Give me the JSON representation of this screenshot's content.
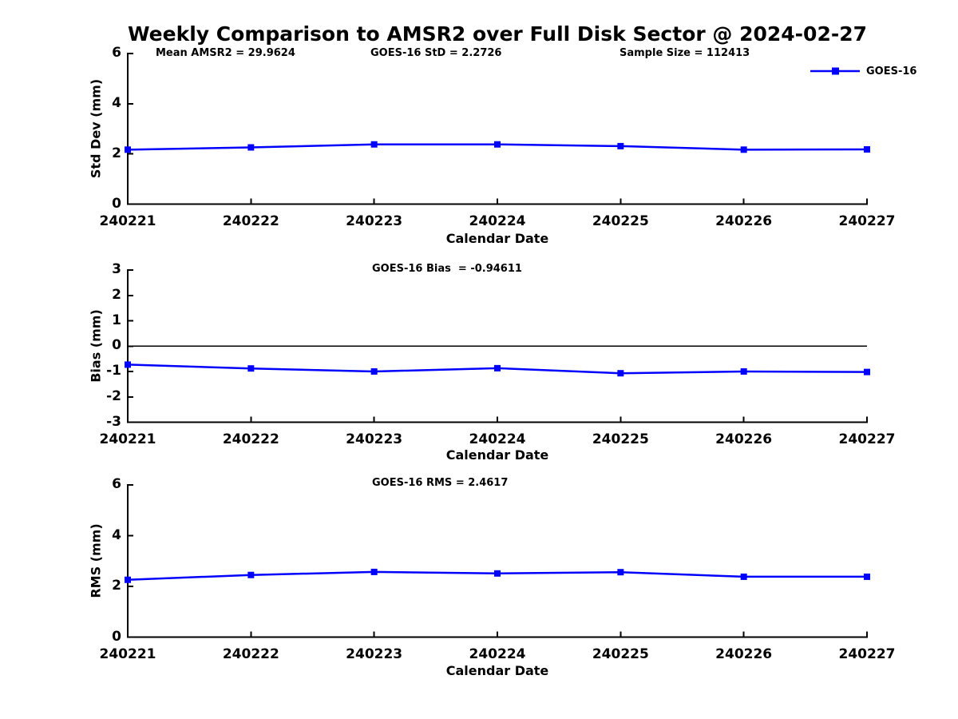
{
  "figure": {
    "title": "Weekly Comparison to AMSR2 over Full Disk Sector @ 2024-02-27",
    "legend_label": "GOES-16",
    "series_color": "#0000FF",
    "axis_color": "#000000"
  },
  "chart_data": [
    {
      "type": "line",
      "categories": [
        "240221",
        "240222",
        "240223",
        "240224",
        "240225",
        "240226",
        "240227"
      ],
      "series": [
        {
          "name": "GOES-16",
          "values": [
            2.17,
            2.26,
            2.38,
            2.38,
            2.31,
            2.17,
            2.18
          ]
        }
      ],
      "xlabel": "Calendar Date",
      "ylabel": "Std Dev (mm)",
      "ylim": [
        0,
        6
      ],
      "yticks": [
        0,
        2,
        4,
        6
      ],
      "annotations": [
        "Mean AMSR2 = 29.9624",
        "GOES-16 StD = 2.2726",
        "Sample Size = 112413"
      ],
      "zero_line": false,
      "legend_position": "top-right",
      "grid": false,
      "marker": "square"
    },
    {
      "type": "line",
      "categories": [
        "240221",
        "240222",
        "240223",
        "240224",
        "240225",
        "240226",
        "240227"
      ],
      "series": [
        {
          "name": "GOES-16",
          "values": [
            -0.73,
            -0.88,
            -1.0,
            -0.87,
            -1.07,
            -1.0,
            -1.02
          ]
        }
      ],
      "xlabel": "Calendar Date",
      "ylabel": "Bias (mm)",
      "ylim": [
        -3,
        3
      ],
      "yticks": [
        -3,
        -2,
        -1,
        0,
        1,
        2,
        3
      ],
      "annotations": [
        "GOES-16 Bias  = -0.94611"
      ],
      "zero_line": true,
      "legend_position": "none",
      "grid": false,
      "marker": "square"
    },
    {
      "type": "line",
      "categories": [
        "240221",
        "240222",
        "240223",
        "240224",
        "240225",
        "240226",
        "240227"
      ],
      "series": [
        {
          "name": "GOES-16",
          "values": [
            2.26,
            2.45,
            2.57,
            2.51,
            2.56,
            2.38,
            2.38
          ]
        }
      ],
      "xlabel": "Calendar Date",
      "ylabel": "RMS (mm)",
      "ylim": [
        0,
        6
      ],
      "yticks": [
        0,
        2,
        4,
        6
      ],
      "annotations": [
        "GOES-16 RMS = 2.4617"
      ],
      "zero_line": false,
      "legend_position": "none",
      "grid": false,
      "marker": "square"
    }
  ]
}
